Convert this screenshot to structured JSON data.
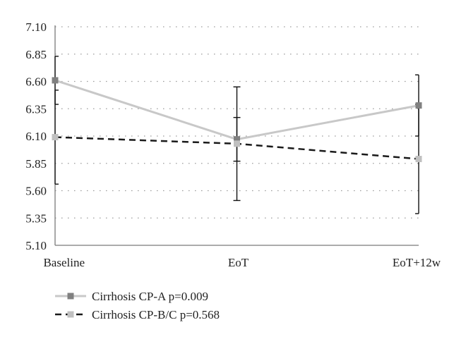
{
  "chart_data": {
    "type": "line",
    "categories": [
      "Baseline",
      "EoT",
      "EoT+12w"
    ],
    "ylim": [
      5.1,
      7.1
    ],
    "yticks": [
      "7.10",
      "6.85",
      "6.60",
      "6.35",
      "6.10",
      "5.85",
      "5.60",
      "5.35",
      "5.10"
    ],
    "grid": "horizontal dotted",
    "legend_position": "bottom-left",
    "series": [
      {
        "name": "Cirrhosis CP-A p=0.009",
        "values": [
          6.61,
          6.07,
          6.38
        ],
        "error_low": [
          6.39,
          5.87,
          6.1
        ],
        "error_high": [
          6.83,
          6.27,
          6.66
        ],
        "line_color": "#c8c8c8",
        "marker_color": "#808080",
        "dashed": false
      },
      {
        "name": "Cirrhosis CP-B/C p=0.568",
        "values": [
          6.09,
          6.03,
          5.89
        ],
        "error_low": [
          5.66,
          5.51,
          5.39
        ],
        "error_high": [
          6.52,
          6.55,
          6.39
        ],
        "line_color": "#1a1a1a",
        "marker_color": "#c0c0c0",
        "dashed": true
      }
    ]
  }
}
